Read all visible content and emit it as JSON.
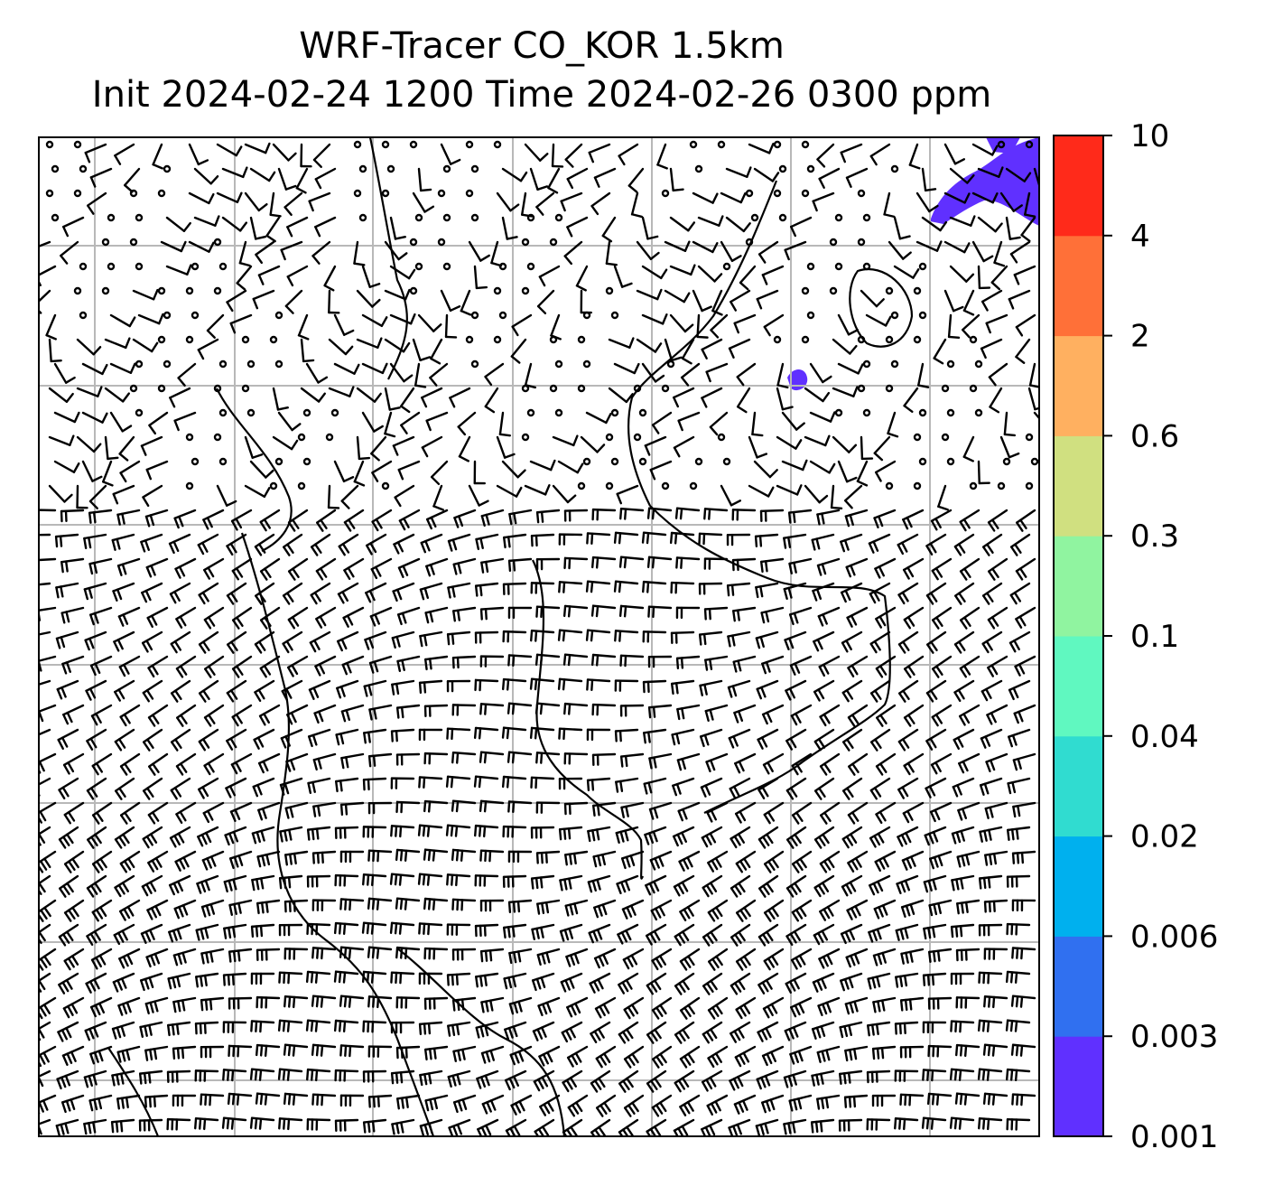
{
  "title": {
    "line1": "WRF-Tracer CO_KOR 1.5km",
    "line2": "Init 2024-02-24 1200 Time 2024-02-26 0300 ppm"
  },
  "colorbar": {
    "levels": [
      "0.001",
      "0.003",
      "0.006",
      "0.02",
      "0.04",
      "0.1",
      "0.3",
      "0.6",
      "2",
      "4",
      "10"
    ],
    "colors": [
      "#6030ff",
      "#3070f0",
      "#00b0ee",
      "#30dcd0",
      "#60f8c0",
      "#90f4a0",
      "#d0e080",
      "#ffb060",
      "#ff7038",
      "#ff2a1a"
    ]
  },
  "map": {
    "grid_color": "#b8b8b8",
    "tracer_color": "#6030ff"
  }
}
